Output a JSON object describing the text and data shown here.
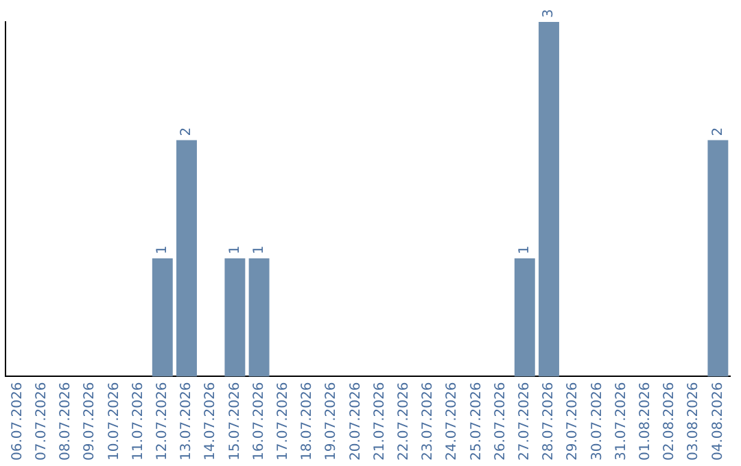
{
  "chart_data": {
    "type": "bar",
    "categories": [
      "06.07.2026",
      "07.07.2026",
      "08.07.2026",
      "09.07.2026",
      "10.07.2026",
      "11.07.2026",
      "12.07.2026",
      "13.07.2026",
      "14.07.2026",
      "15.07.2026",
      "16.07.2026",
      "17.07.2026",
      "18.07.2026",
      "19.07.2026",
      "20.07.2026",
      "21.07.2026",
      "22.07.2026",
      "23.07.2026",
      "24.07.2026",
      "25.07.2026",
      "26.07.2026",
      "27.07.2026",
      "28.07.2026",
      "29.07.2026",
      "30.07.2026",
      "31.07.2026",
      "01.08.2026",
      "02.08.2026",
      "03.08.2026",
      "04.08.2026"
    ],
    "values": [
      0,
      0,
      0,
      0,
      0,
      0,
      1,
      2,
      0,
      1,
      1,
      0,
      0,
      0,
      0,
      0,
      0,
      0,
      0,
      0,
      0,
      1,
      3,
      0,
      0,
      0,
      0,
      0,
      0,
      2
    ],
    "value_labels": [
      null,
      null,
      null,
      null,
      null,
      null,
      "1",
      "2",
      null,
      "1",
      "1",
      null,
      null,
      null,
      null,
      null,
      null,
      null,
      null,
      null,
      null,
      "1",
      "3",
      null,
      null,
      null,
      null,
      null,
      null,
      "2"
    ],
    "color": "#6f8faf",
    "grid": false,
    "legend": false,
    "tick_labels": "x"
  }
}
